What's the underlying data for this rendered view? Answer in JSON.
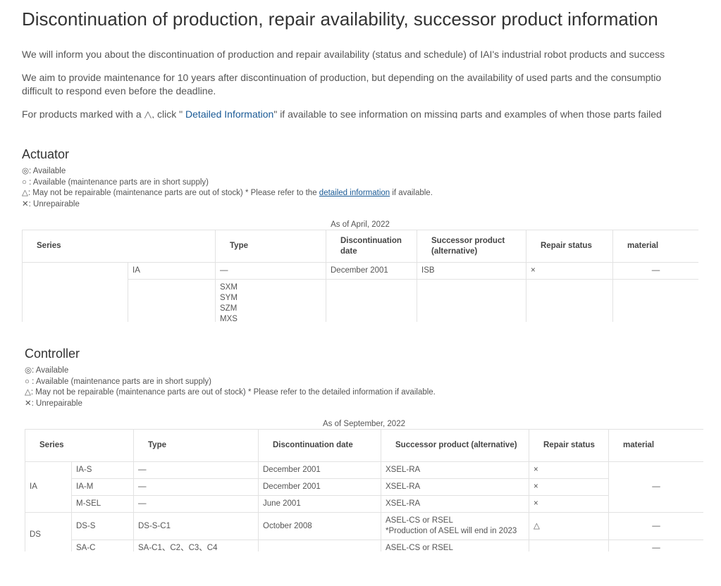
{
  "header": {
    "title": "Discontinuation of production, repair availability, successor product information"
  },
  "intro": {
    "p1": "We will inform you about the discontinuation of production and repair availability (status and schedule) of IAI's industrial robot products and success",
    "p2": [
      "We aim to provide maintenance for 10 years after discontinuation of production, but depending on the availability of used parts and the consumptio",
      "difficult to respond even before the deadline."
    ],
    "p3": {
      "before": "For products marked with a △, click \"",
      "link": " Detailed Information",
      "after": "\" if available to see information on missing parts and examples of when those parts failed"
    }
  },
  "actuator": {
    "heading": "Actuator",
    "legend": [
      "◎: Available",
      "○ : Available (maintenance parts are in short supply)",
      {
        "before": "△: May not be repairable (maintenance parts are out of stock) * Please refer to the ",
        "link": "detailed information",
        "after": " if available."
      },
      "✕: Unrepairable"
    ],
    "as_of": "As of April, 2022",
    "headers": [
      "Series",
      "Type",
      "Discontinuation date",
      "Successor product (alternative)",
      "Repair status",
      "material"
    ],
    "rows": [
      {
        "model": "IA",
        "type": "—",
        "date": "December 2001",
        "successor": "ISB",
        "repair": "×",
        "material": "—"
      },
      {
        "type": [
          "SXM",
          "SYM",
          "SZM",
          "MXS"
        ]
      }
    ]
  },
  "controller": {
    "heading": "Controller",
    "legend": [
      "◎: Available",
      "○ : Available (maintenance parts are in short supply)",
      "△: May not be repairable (maintenance parts are out of stock) * Please refer to the detailed information if available.",
      "✕: Unrepairable"
    ],
    "as_of": "As of September, 2022",
    "headers": [
      "Series",
      "Type",
      "Discontinuation date",
      "Successor product (alternative)",
      "Repair status",
      "material"
    ],
    "groups": [
      {
        "series": "IA",
        "material": "—",
        "rows": [
          {
            "model": "IA-S",
            "type": "—",
            "date": "December 2001",
            "successor": "XSEL-RA",
            "repair": "×"
          },
          {
            "model": "IA-M",
            "type": "—",
            "date": "December 2001",
            "successor": "XSEL-RA",
            "repair": "×"
          },
          {
            "model": "M-SEL",
            "type": "—",
            "date": "June 2001",
            "successor": "XSEL-RA",
            "repair": "×"
          }
        ]
      },
      {
        "series": "DS",
        "rows": [
          {
            "model": "DS-S",
            "type": "DS-S-C1",
            "date": "October 2008",
            "successor": [
              "ASEL-CS or RSEL",
              "*Production of ASEL will end in 2023"
            ],
            "repair": "△",
            "material": "—"
          },
          {
            "model": "SA-C",
            "type": "SA-C1、C2、C3、C4",
            "successor": "ASEL-CS or RSEL",
            "material": "—"
          }
        ]
      }
    ]
  }
}
